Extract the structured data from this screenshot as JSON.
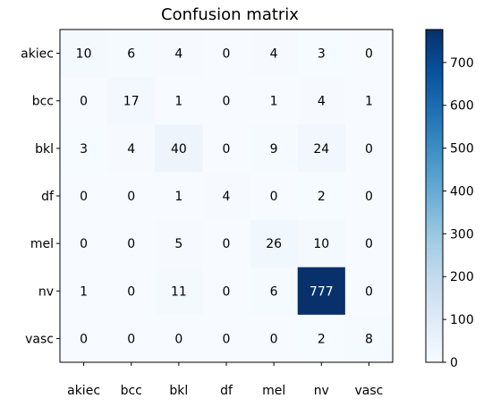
{
  "chart_data": {
    "type": "heatmap",
    "title": "Confusion matrix",
    "row_labels": [
      "akiec",
      "bcc",
      "bkl",
      "df",
      "mel",
      "nv",
      "vasc"
    ],
    "col_labels": [
      "akiec",
      "bcc",
      "bkl",
      "df",
      "mel",
      "nv",
      "vasc"
    ],
    "values": [
      [
        10,
        6,
        4,
        0,
        4,
        3,
        0
      ],
      [
        0,
        17,
        1,
        0,
        1,
        4,
        1
      ],
      [
        3,
        4,
        40,
        0,
        9,
        24,
        0
      ],
      [
        0,
        0,
        1,
        4,
        0,
        2,
        0
      ],
      [
        0,
        0,
        5,
        0,
        26,
        10,
        0
      ],
      [
        1,
        0,
        11,
        0,
        6,
        777,
        0
      ],
      [
        0,
        0,
        0,
        0,
        0,
        2,
        8
      ]
    ],
    "colorbar": {
      "range": [
        0,
        777
      ],
      "ticks": [
        0,
        100,
        200,
        300,
        400,
        500,
        600,
        700
      ]
    },
    "colormap": "Blues"
  }
}
